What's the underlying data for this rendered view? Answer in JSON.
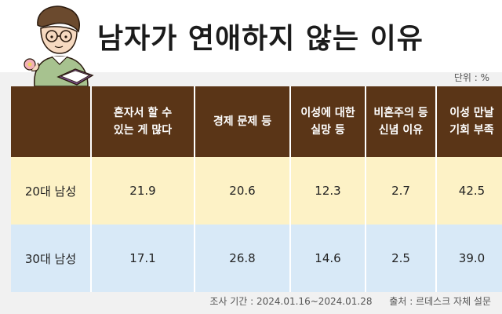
{
  "title": "남자가 연애하지 않는 이유",
  "unit": "단위 : %",
  "chart_data": {
    "type": "table",
    "columns": [
      [
        "혼자서 할 수",
        "있는 게 많다"
      ],
      [
        "경제 문제 등"
      ],
      [
        "이성에 대한",
        "실망 등"
      ],
      [
        "비혼주의 등",
        "신념 이유"
      ],
      [
        "이성 만날",
        "기회 부족"
      ]
    ],
    "rows": [
      {
        "label": "20대 남성",
        "values": [
          "21.9",
          "20.6",
          "12.3",
          "2.7",
          "42.5"
        ]
      },
      {
        "label": "30대 남성",
        "values": [
          "17.1",
          "26.8",
          "14.6",
          "2.5",
          "39.0"
        ]
      }
    ]
  },
  "footer": {
    "period": "조사 기간 : 2024.01.16~2024.01.28",
    "source": "출처 : 르데스크 자체 설문"
  },
  "colors": {
    "header_bg": "#5a3517",
    "row1_bg": "#fdf2c6",
    "row2_bg": "#d8e9f7"
  }
}
